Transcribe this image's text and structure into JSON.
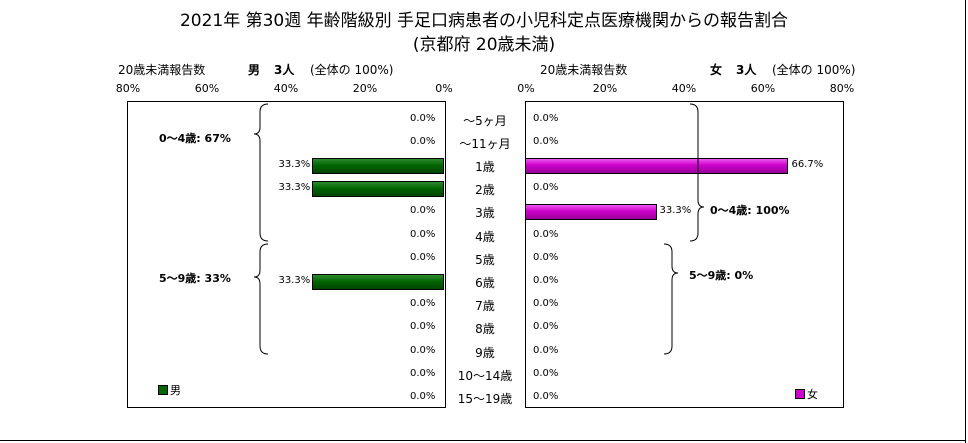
{
  "title_line1": "2021年 第30週 年齢階級別 手足口病患者の小児科定点医療機関からの報告割合",
  "title_line2": "(京都府 20歳未満)",
  "male_header": {
    "label": "20歳未満報告数",
    "sex": "男",
    "count": "3人",
    "share": "(全体の 100%)"
  },
  "female_header": {
    "label": "20歳未満報告数",
    "sex": "女",
    "count": "3人",
    "share": "(全体の 100%)"
  },
  "left_ticks": [
    "80%",
    "60%",
    "40%",
    "20%",
    "0%"
  ],
  "right_ticks": [
    "0%",
    "20%",
    "40%",
    "60%",
    "80%"
  ],
  "legend": {
    "male": "男",
    "female": "女",
    "male_color": "#006600",
    "female_color": "#cc00cc"
  },
  "group_labels": {
    "male_0_4": "0～4歳: 67%",
    "male_5_9": "5～9歳: 33%",
    "female_0_4": "0～4歳: 100%",
    "female_5_9": "5～9歳: 0%"
  },
  "chart_data": {
    "type": "bar",
    "orientation": "horizontal-butterfly",
    "categories": [
      "～5ヶ月",
      "～11ヶ月",
      "1歳",
      "2歳",
      "3歳",
      "4歳",
      "5歳",
      "6歳",
      "7歳",
      "8歳",
      "9歳",
      "10～14歳",
      "15～19歳"
    ],
    "series": [
      {
        "name": "男",
        "color": "#006600",
        "values": [
          0.0,
          0.0,
          33.3,
          33.3,
          0.0,
          0.0,
          0.0,
          33.3,
          0.0,
          0.0,
          0.0,
          0.0,
          0.0
        ],
        "labels": [
          "0.0%",
          "0.0%",
          "33.3%",
          "33.3%",
          "0.0%",
          "0.0%",
          "0.0%",
          "33.3%",
          "0.0%",
          "0.0%",
          "0.0%",
          "0.0%",
          "0.0%"
        ]
      },
      {
        "name": "女",
        "color": "#cc00cc",
        "values": [
          0.0,
          0.0,
          66.7,
          0.0,
          33.3,
          0.0,
          0.0,
          0.0,
          0.0,
          0.0,
          0.0,
          0.0,
          0.0
        ],
        "labels": [
          "0.0%",
          "0.0%",
          "66.7%",
          "0.0%",
          "33.3%",
          "0.0%",
          "0.0%",
          "0.0%",
          "0.0%",
          "0.0%",
          "0.0%",
          "0.0%",
          "0.0%"
        ]
      }
    ],
    "xlim": [
      0,
      80
    ]
  }
}
